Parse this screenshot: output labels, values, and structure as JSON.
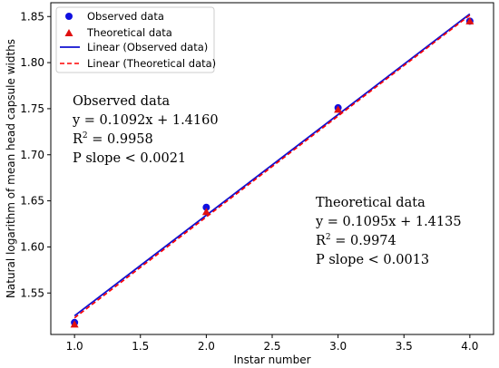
{
  "chart_data": {
    "type": "scatter",
    "xlabel": "Instar number",
    "ylabel": "Natural logarithm of mean head capsule widths",
    "xlim": [
      0.82,
      4.18
    ],
    "ylim": [
      1.505,
      1.865
    ],
    "x_ticks": [
      1.0,
      1.5,
      2.0,
      2.5,
      3.0,
      3.5,
      4.0
    ],
    "x_tick_labels": [
      "1.0",
      "1.5",
      "2.0",
      "2.5",
      "3.0",
      "3.5",
      "4.0"
    ],
    "y_ticks": [
      1.55,
      1.6,
      1.65,
      1.7,
      1.75,
      1.8,
      1.85
    ],
    "y_tick_labels": [
      "1.55",
      "1.60",
      "1.65",
      "1.70",
      "1.75",
      "1.80",
      "1.85"
    ],
    "grid": false,
    "legend_position": "top-left",
    "series": [
      {
        "name": "Observed data",
        "kind": "scatter",
        "marker": "circle",
        "color": "#1010e0",
        "x": [
          1,
          2,
          3,
          4
        ],
        "y": [
          1.518,
          1.643,
          1.751,
          1.845
        ]
      },
      {
        "name": "Theoretical data",
        "kind": "scatter",
        "marker": "triangle",
        "color": "#e01010",
        "x": [
          1,
          2,
          3,
          4
        ],
        "y": [
          1.516,
          1.638,
          1.749,
          1.845
        ]
      },
      {
        "name": "Linear (Observed data)",
        "kind": "line",
        "dash": "solid",
        "color": "#1010d0",
        "x": [
          1,
          4
        ],
        "y": [
          1.5252,
          1.8528
        ]
      },
      {
        "name": "Linear (Theoretical data)",
        "kind": "line",
        "dash": "dashed",
        "color": "#ff0000",
        "x": [
          1,
          4
        ],
        "y": [
          1.523,
          1.8515
        ]
      }
    ],
    "annotations": [
      {
        "title": "Observed data",
        "equation": "y = 0.1092x + 1.4160",
        "r2_prefix": "R",
        "r2_sup": "2",
        "r2_value": " = 0.9958",
        "p_text": "P slope < 0.0021"
      },
      {
        "title": "Theoretical data",
        "equation": "y = 0.1095x + 1.4135",
        "r2_prefix": "R",
        "r2_sup": "2",
        "r2_value": " = 0.9974",
        "p_text": "P slope < 0.0013"
      }
    ]
  }
}
